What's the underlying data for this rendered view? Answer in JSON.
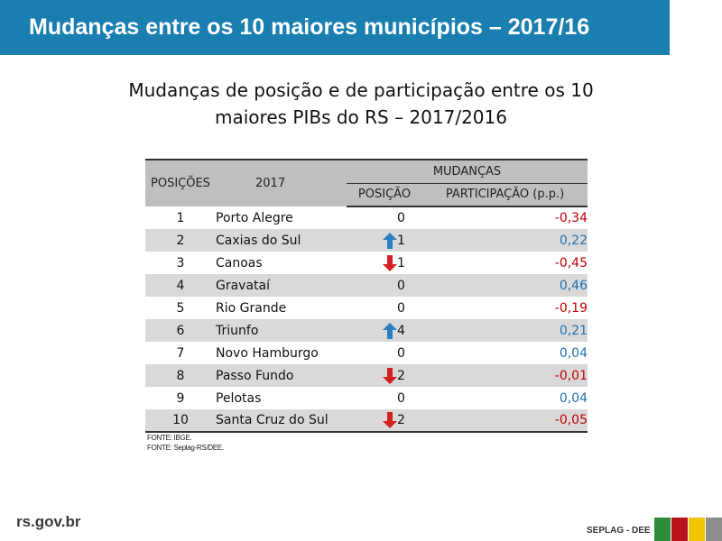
{
  "header": {
    "title": "Mudanças entre os 10 maiores municípios – 2017/16"
  },
  "subtitle": {
    "line1": "Mudanças de posição e de participação entre os 10",
    "line2": "maiores PIBs do RS – 2017/2016"
  },
  "table": {
    "col_posicoes": "POSIÇÕES",
    "col_year": "2017",
    "col_mudancas": "MUDANÇAS",
    "col_posicao": "POSIÇÃO",
    "col_participacao": "PARTICIPAÇÃO (p.p.)",
    "rows": [
      {
        "pos": "1",
        "city": "Porto Alegre",
        "arrow": "none",
        "change": "0",
        "part": "-0,34",
        "sign": "neg"
      },
      {
        "pos": "2",
        "city": "Caxias do Sul",
        "arrow": "up",
        "change": "1",
        "part": "0,22",
        "sign": "pos"
      },
      {
        "pos": "3",
        "city": "Canoas",
        "arrow": "down",
        "change": "1",
        "part": "-0,45",
        "sign": "neg"
      },
      {
        "pos": "4",
        "city": "Gravataí",
        "arrow": "none",
        "change": "0",
        "part": "0,46",
        "sign": "pos"
      },
      {
        "pos": "5",
        "city": "Rio Grande",
        "arrow": "none",
        "change": "0",
        "part": "-0,19",
        "sign": "neg"
      },
      {
        "pos": "6",
        "city": "Triunfo",
        "arrow": "up",
        "change": "4",
        "part": "0,21",
        "sign": "pos"
      },
      {
        "pos": "7",
        "city": "Novo Hamburgo",
        "arrow": "none",
        "change": "0",
        "part": "0,04",
        "sign": "pos"
      },
      {
        "pos": "8",
        "city": "Passo Fundo",
        "arrow": "down",
        "change": "2",
        "part": "-0,01",
        "sign": "neg"
      },
      {
        "pos": "9",
        "city": "Pelotas",
        "arrow": "none",
        "change": "0",
        "part": "0,04",
        "sign": "pos"
      },
      {
        "pos": "10",
        "city": "Santa Cruz do Sul",
        "arrow": "down",
        "change": "2",
        "part": "-0,05",
        "sign": "neg"
      }
    ]
  },
  "sources": {
    "line1": "FONTE: IBGE.",
    "line2": "FONTE: Seplag-RS/DEE."
  },
  "footer": {
    "logo": "rs.gov.br",
    "label": "SEPLAG - DEE"
  },
  "colors": {
    "header_bg": "#1a7fb0",
    "negative": "#c00000",
    "positive": "#2070b0",
    "arrow_up": "#2a7fc2",
    "arrow_down": "#d42020",
    "flag": [
      "#2e8b3a",
      "#b8141c",
      "#f2c400",
      "#8c8c8c"
    ]
  },
  "icons": {
    "up": "arrow-up-icon",
    "down": "arrow-down-icon"
  }
}
